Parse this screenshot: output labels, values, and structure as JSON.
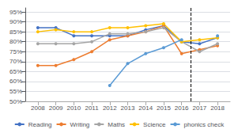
{
  "chart_data": {
    "type": "line",
    "x": [
      2008,
      2009,
      2010,
      2011,
      2012,
      2013,
      2014,
      2015,
      2016,
      2017,
      2018
    ],
    "series": [
      {
        "name": "Reading",
        "color": "#4472c4",
        "marker": "circle",
        "values": [
          87,
          87,
          83,
          83,
          83,
          83,
          86,
          88,
          80,
          79,
          82
        ]
      },
      {
        "name": "Writing",
        "color": "#ed7d31",
        "marker": "circle",
        "values": [
          68,
          68,
          71,
          75,
          81,
          83,
          85,
          88,
          74,
          76,
          78
        ]
      },
      {
        "name": "Maths",
        "color": "#a5a5a5",
        "marker": "circle",
        "values": [
          79,
          79,
          79,
          80,
          84,
          84,
          85,
          87,
          80,
          75,
          79
        ]
      },
      {
        "name": "Science",
        "color": "#ffc000",
        "marker": "circle",
        "values": [
          85,
          86,
          85,
          85,
          87,
          87,
          88,
          89,
          80,
          81,
          82
        ]
      },
      {
        "name": "phonics check",
        "color": "#5b9bd5",
        "marker": "circle",
        "values": [
          null,
          null,
          null,
          null,
          58,
          69,
          74,
          77,
          81,
          null,
          83
        ]
      }
    ],
    "xlim": [
      2007.3,
      2018.7
    ],
    "xticks": [
      2008,
      2009,
      2010,
      2011,
      2012,
      2013,
      2014,
      2015,
      2016,
      2017,
      2018
    ],
    "ylim": [
      50,
      97
    ],
    "yticks": [
      {
        "value": 50,
        "label": "50%"
      },
      {
        "value": 55,
        "label": "55%"
      },
      {
        "value": 60,
        "label": "60%"
      },
      {
        "value": 65,
        "label": "65%"
      },
      {
        "value": 70,
        "label": "70%"
      },
      {
        "value": 75,
        "label": "75%"
      },
      {
        "value": 80,
        "label": "80%"
      },
      {
        "value": 85,
        "label": "85%"
      },
      {
        "value": 90,
        "label": "90%"
      },
      {
        "value": 95,
        "label": "95%"
      }
    ],
    "vlines": [
      {
        "x": 2016.5,
        "line_style": "dashed",
        "color": "#000000"
      }
    ],
    "grid": true,
    "legend": "bottom"
  }
}
